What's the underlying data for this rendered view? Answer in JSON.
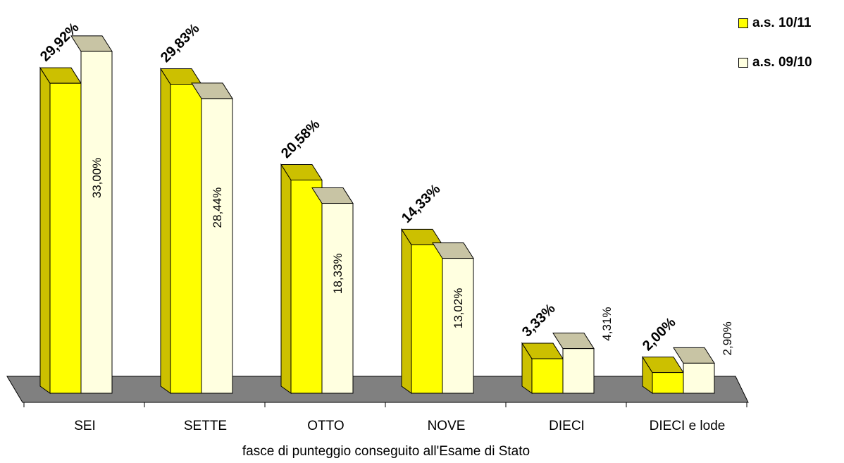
{
  "chart_data": {
    "type": "bar",
    "categories": [
      "SEI",
      "SETTE",
      "OTTO",
      "NOVE",
      "DIECI",
      "DIECI e lode"
    ],
    "series": [
      {
        "name": "a.s. 10/11",
        "values": [
          29.92,
          29.83,
          20.58,
          14.33,
          3.33,
          2.0
        ],
        "labels": [
          "29,92%",
          "29,83%",
          "20,58%",
          "14,33%",
          "3,33%",
          "2,00%"
        ]
      },
      {
        "name": "a.s. 09/10",
        "values": [
          33.0,
          28.44,
          18.33,
          13.02,
          4.31,
          2.9
        ],
        "labels": [
          "33,00%",
          "28,44%",
          "18,33%",
          "13,02%",
          "4,31%",
          "2,90%"
        ]
      }
    ],
    "xlabel": "fasce di punteggio conseguito all'Esame di Stato",
    "ylabel": "",
    "ylim": [
      0,
      35
    ],
    "grid": false,
    "legend_position": "top-right",
    "style": "3d-clustered-column"
  },
  "colors": {
    "series_1_front": "#FFFF00",
    "series_1_side": "#CCC000",
    "series_2_front": "#FFFFE0",
    "series_2_side": "#C8C4A4",
    "floor": "#808080",
    "outline": "#000000"
  },
  "legend": {
    "items": [
      {
        "label": "a.s. 10/11",
        "color": "#FFFF00"
      },
      {
        "label": "a.s. 09/10",
        "color": "#FFFFE0"
      }
    ]
  }
}
